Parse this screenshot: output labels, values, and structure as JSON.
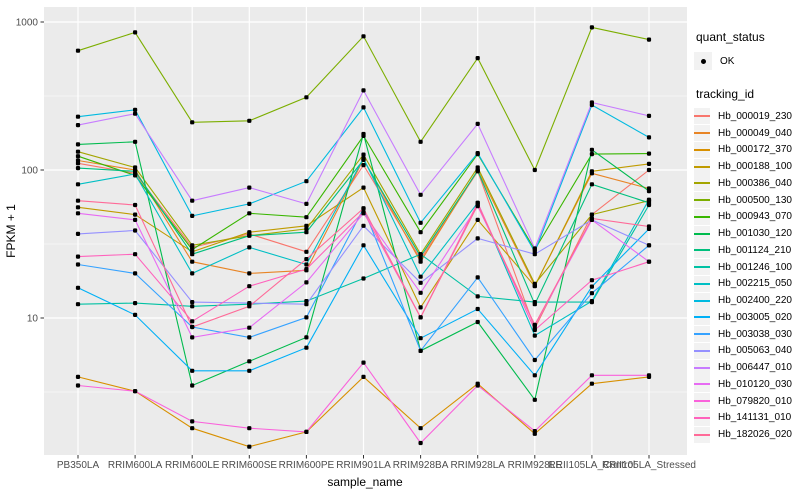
{
  "figure": {
    "background": "#FFFFFF",
    "panel_background": "#EBEBEB",
    "grid_color": "#FFFFFF",
    "tick_color": "#333333",
    "tick_label_color": "#4D4D4D",
    "point_color": "#000000",
    "legend_key_background": "#F2F2F2"
  },
  "legend": {
    "quant_status": {
      "title": "quant_status",
      "items": [
        {
          "label": "OK",
          "marker": "black-point"
        }
      ]
    },
    "tracking_id": {
      "title": "tracking_id"
    }
  },
  "chart_data": {
    "type": "line",
    "title": "",
    "xlabel": "sample_name",
    "ylabel": "FPKM + 1",
    "yscale": "log10",
    "yticks": [
      10,
      100,
      1000
    ],
    "yminor": [
      3.162,
      31.62,
      316.2
    ],
    "ylim": [
      1.2,
      1200
    ],
    "grid": true,
    "legend_position": "right",
    "categories": [
      "PB350LA",
      "RRIM600LA",
      "RRIM600LE",
      "RRIM600SE",
      "RRIM600PE",
      "RRIM901LA",
      "RRIM928BA",
      "RRIM928LA",
      "RRIM928LE",
      "RRII105LA_Control",
      "RRII105LA_Stressed"
    ],
    "series": [
      {
        "name": "Hb_000019_230",
        "color": "#F8766D",
        "values": [
          111,
          95,
          30,
          37,
          28,
          108,
          25,
          98,
          8.5,
          50,
          100
        ]
      },
      {
        "name": "Hb_000049_040",
        "color": "#E88526",
        "values": [
          116,
          100,
          24,
          20,
          21,
          118,
          24,
          100,
          16.5,
          95,
          75
        ]
      },
      {
        "name": "Hb_000172_370",
        "color": "#D89000",
        "values": [
          4,
          3.2,
          1.8,
          1.35,
          1.7,
          4,
          1.8,
          3.6,
          1.65,
          3.6,
          4
        ]
      },
      {
        "name": "Hb_000188_100",
        "color": "#C09B00",
        "values": [
          56,
          50,
          28,
          38,
          42,
          76,
          11.8,
          46,
          16.4,
          98,
          110
        ]
      },
      {
        "name": "Hb_000386_040",
        "color": "#A3A500",
        "values": [
          133,
          104,
          31,
          36,
          40,
          127,
          27,
          104,
          17,
          50,
          62
        ]
      },
      {
        "name": "Hb_000500_130",
        "color": "#7CAE00",
        "values": [
          640,
          850,
          210,
          215,
          310,
          800,
          155,
          570,
          100,
          920,
          760
        ]
      },
      {
        "name": "Hb_000943_070",
        "color": "#39B600",
        "values": [
          124,
          92,
          29,
          51,
          48,
          170,
          38,
          128,
          29,
          128,
          129
        ]
      },
      {
        "name": "Hb_001030_120",
        "color": "#00BB4E",
        "values": [
          149,
          155,
          3.5,
          5.1,
          7.4,
          175,
          6,
          9.4,
          2.8,
          137,
          72
        ]
      },
      {
        "name": "Hb_001124_210",
        "color": "#00BF7D",
        "values": [
          103,
          98,
          27,
          36,
          38,
          117,
          26,
          99,
          12.4,
          80,
          60
        ]
      },
      {
        "name": "Hb_001246_100",
        "color": "#00C1A3",
        "values": [
          12.4,
          12.6,
          12,
          12.4,
          13,
          18.5,
          27,
          14,
          12.8,
          12.8,
          58
        ]
      },
      {
        "name": "Hb_002215_050",
        "color": "#00BFC4",
        "values": [
          80,
          94,
          20,
          30,
          23,
          120,
          19,
          60,
          7.6,
          13,
          63
        ]
      },
      {
        "name": "Hb_002400_220",
        "color": "#00BAE0",
        "values": [
          229,
          255,
          49,
          59,
          84,
          265,
          44,
          130,
          28,
          275,
          166
        ]
      },
      {
        "name": "Hb_003005_020",
        "color": "#00B0F6",
        "values": [
          16,
          10.5,
          4.4,
          4.4,
          6.3,
          31,
          7.3,
          11.5,
          4.1,
          16.3,
          40
        ]
      },
      {
        "name": "Hb_003038_030",
        "color": "#35A2FF",
        "values": [
          23,
          20,
          8.7,
          7.4,
          10.1,
          55,
          6,
          18.8,
          5.2,
          14.7,
          31
        ]
      },
      {
        "name": "Hb_005063_040",
        "color": "#9590FF",
        "values": [
          37,
          39,
          12.8,
          12.6,
          12.4,
          42,
          17.3,
          34.5,
          27,
          46,
          31
        ]
      },
      {
        "name": "Hb_006447_010",
        "color": "#C77CFF",
        "values": [
          201,
          240,
          62,
          76,
          59,
          345,
          68,
          205,
          29.5,
          286,
          232
        ]
      },
      {
        "name": "Hb_010120_030",
        "color": "#E76BF3",
        "values": [
          51,
          46,
          7.4,
          8.6,
          17.4,
          51,
          14.8,
          57,
          8.9,
          46,
          24
        ]
      },
      {
        "name": "Hb_079820_010",
        "color": "#FA62DB",
        "values": [
          3.5,
          3.2,
          2,
          1.8,
          1.7,
          5,
          1.43,
          3.5,
          1.72,
          4.1,
          4.1
        ]
      },
      {
        "name": "Hb_141131_010",
        "color": "#FF62BC",
        "values": [
          26,
          27,
          9.5,
          16.4,
          21.4,
          52,
          10.1,
          60,
          8.3,
          18,
          24
        ]
      },
      {
        "name": "Hb_182026_020",
        "color": "#FF6A98",
        "values": [
          62,
          58,
          8.7,
          12,
          25,
          55,
          10.1,
          58,
          9,
          47,
          41.5
        ]
      }
    ]
  }
}
